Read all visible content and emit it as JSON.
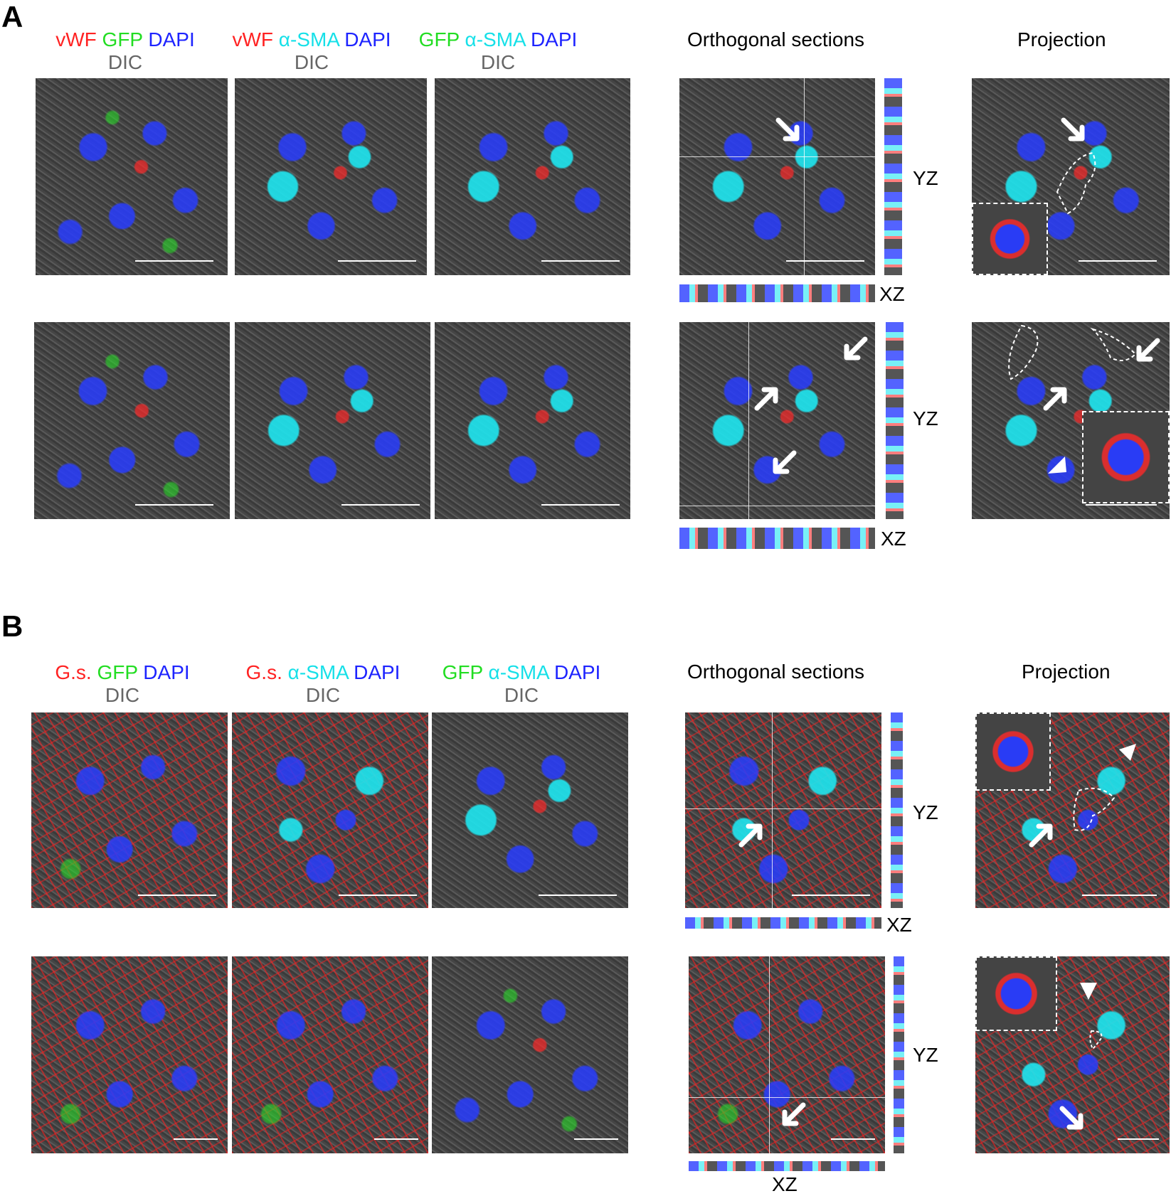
{
  "panelA": {
    "letter": "A",
    "headers": [
      {
        "m1": "vWF",
        "m2": "GFP",
        "m3": "DAPI",
        "sub": "DIC"
      },
      {
        "m1": "vWF",
        "m2": "α-SMA",
        "m3": "DAPI",
        "sub": "DIC"
      },
      {
        "m1": "GFP",
        "m2": "α-SMA",
        "m3": "DAPI",
        "sub": "DIC"
      }
    ],
    "orthogonal": "Orthogonal sections",
    "projection": "Projection",
    "yz": "YZ",
    "xz": "XZ"
  },
  "panelB": {
    "letter": "B",
    "headers": [
      {
        "m1": "G.s.",
        "m2": "GFP",
        "m3": "DAPI",
        "sub": "DIC"
      },
      {
        "m1": "G.s.",
        "m2": "α-SMA",
        "m3": "DAPI",
        "sub": "DIC"
      },
      {
        "m1": "GFP",
        "m2": "α-SMA",
        "m3": "DAPI",
        "sub": "DIC"
      }
    ],
    "orthogonal": "Orthogonal sections",
    "projection": "Projection",
    "yz": "YZ",
    "xz": "XZ"
  },
  "colors": {
    "vwf_gs": "#ff2222",
    "gfp": "#22dd22",
    "dapi": "#1e24ff",
    "asma": "#16e0e8",
    "dic": "#666666"
  }
}
